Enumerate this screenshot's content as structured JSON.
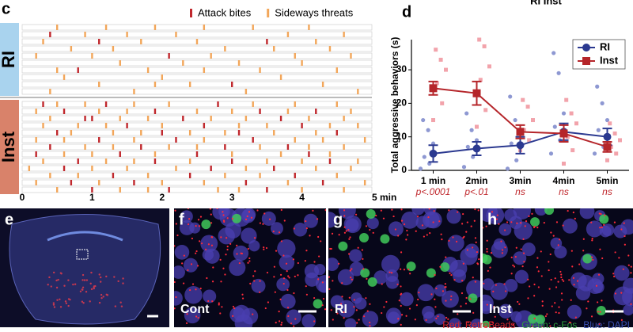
{
  "chart_data": [
    {
      "type": "raster",
      "panel": "c",
      "series": [
        {
          "name": "Attack bites",
          "color": "#c0282d"
        },
        {
          "name": "Sideways threats",
          "color": "#f2a65a"
        }
      ],
      "groups": [
        {
          "label": "RI",
          "color": "#a9d3ee",
          "rows": [
            [
              [],
              [
                0.5,
                1.2,
                1.9,
                2.6,
                3.3,
                4.1
              ]
            ],
            [
              [
                0.4
              ],
              [
                0.9,
                1.5,
                2.2,
                3.8,
                4.6
              ]
            ],
            [
              [
                1.1,
                3.5
              ],
              [
                0.3,
                1.7,
                2.5,
                4.2
              ]
            ],
            [
              [],
              [
                0.7,
                1.3,
                2.9,
                3.6,
                4.4
              ]
            ],
            [
              [
                2.1
              ],
              [
                0.2,
                1.0,
                2.7,
                3.9,
                4.7
              ]
            ],
            [
              [],
              [
                1.4,
                2.3,
                3.1,
                4.0
              ]
            ],
            [
              [
                0.8
              ],
              [
                0.5,
                1.8,
                2.6,
                3.4,
                4.5
              ]
            ],
            [
              [],
              [
                0.6,
                2.0,
                3.7
              ]
            ],
            [
              [
                3.0
              ],
              [
                1.1,
                1.9,
                2.4,
                4.3
              ]
            ],
            [
              [],
              [
                0.4,
                1.6,
                3.2,
                4.8
              ]
            ]
          ]
        },
        {
          "label": "Inst",
          "color": "#d9826a",
          "rows": [
            [
              [
                0.3,
                1.2,
                2.8
              ],
              [
                0.5,
                0.9,
                1.6,
                2.1,
                3.3,
                3.9,
                4.5
              ]
            ],
            [
              [
                0.6,
                1.9,
                3.4,
                4.2
              ],
              [
                0.2,
                1.1,
                1.5,
                2.5,
                3.0,
                3.8,
                4.7
              ]
            ],
            [
              [
                0.9,
                1.0,
                2.3,
                3.7
              ],
              [
                0.4,
                1.4,
                1.8,
                2.7,
                3.2,
                4.1,
                4.6
              ]
            ],
            [
              [
                1.5,
                2.6,
                4.0
              ],
              [
                0.3,
                0.8,
                1.2,
                2.0,
                3.1,
                3.5,
                4.4,
                4.8
              ]
            ],
            [
              [
                0.5,
                2.0,
                3.1,
                4.5
              ],
              [
                0.7,
                1.3,
                1.7,
                2.4,
                2.9,
                3.6,
                4.2
              ]
            ],
            [
              [
                1.1,
                2.2,
                3.3
              ],
              [
                0.2,
                0.6,
                1.6,
                2.6,
                3.9,
                4.3,
                4.9
              ]
            ],
            [
              [
                0.4,
                1.7,
                2.9,
                3.8
              ],
              [
                0.9,
                1.3,
                2.1,
                2.5,
                3.4,
                4.1,
                4.6
              ]
            ],
            [
              [
                0.2,
                1.4,
                2.5,
                4.1
              ],
              [
                0.6,
                1.0,
                1.9,
                3.0,
                3.7,
                4.4
              ]
            ],
            [
              [
                0.8,
                1.9,
                3.0,
                4.4
              ],
              [
                0.3,
                1.2,
                1.6,
                2.4,
                3.5,
                4.0,
                4.8
              ]
            ],
            [
              [
                0.6,
                2.7,
                3.6
              ],
              [
                0.1,
                1.0,
                1.5,
                2.2,
                3.2,
                4.2,
                4.7
              ]
            ],
            [
              [
                1.3,
                2.4,
                3.9
              ],
              [
                0.4,
                0.8,
                1.8,
                2.9,
                3.4,
                4.5
              ]
            ],
            [
              [
                0.7,
                1.6,
                3.2,
                4.3
              ],
              [
                0.2,
                1.1,
                2.0,
                2.6,
                3.8,
                4.9
              ]
            ],
            [
              [
                1.0,
                2.1,
                3.5
              ],
              [
                0.5,
                1.4,
                1.8,
                2.8,
                3.1,
                4.0,
                4.6
              ]
            ]
          ]
        }
      ],
      "xlim": [
        0,
        5
      ],
      "xticks": [
        0,
        1,
        2,
        3,
        4,
        {
          "value": 5,
          "label": "5 min"
        }
      ]
    },
    {
      "type": "line",
      "panel": "d",
      "title": "RI Inst",
      "ylabel": "Total aggressive behaviors (s)",
      "categories": [
        "1 min",
        "2min",
        "3min",
        "4min",
        "5min"
      ],
      "sublabels": [
        "p<.0001",
        "p<.01",
        "ns",
        "ns",
        "ns"
      ],
      "ylim": [
        0,
        39
      ],
      "yticks": [
        0,
        10,
        20,
        30
      ],
      "series": [
        {
          "name": "RI",
          "color": "#2b3990",
          "point_color": "#8e98d2",
          "values": [
            5,
            6.5,
            7.5,
            11.5,
            10
          ],
          "errors": [
            2.5,
            2,
            2.5,
            2.5,
            2.5
          ],
          "points": [
            [
              0.5,
              2,
              4,
              8,
              12,
              15
            ],
            [
              1,
              4,
              7,
              9,
              12,
              17
            ],
            [
              0.5,
              3,
              8,
              12,
              15,
              22
            ],
            [
              5,
              9,
              13,
              17,
              29,
              35
            ],
            [
              5,
              7,
              12,
              15,
              20,
              25
            ]
          ]
        },
        {
          "name": "Inst",
          "color": "#b5252a",
          "point_color": "#f2a3ab",
          "values": [
            24.5,
            23,
            11.5,
            11,
            7
          ],
          "errors": [
            2,
            3.5,
            2,
            2.5,
            1.5
          ],
          "points": [
            [
              15,
              20,
              26,
              30,
              33,
              36
            ],
            [
              13,
              18,
              27,
              31,
              37,
              39
            ],
            [
              6,
              9,
              12,
              15,
              19,
              21
            ],
            [
              2,
              6,
              10,
              14,
              17,
              21
            ],
            [
              3,
              5,
              7,
              9,
              11,
              14
            ]
          ]
        }
      ],
      "legend": "upper right"
    }
  ],
  "images": [
    {
      "letter": "e",
      "label": ""
    },
    {
      "letter": "f",
      "label": "Cont"
    },
    {
      "letter": "g",
      "label": "RI"
    },
    {
      "letter": "h",
      "label": "Inst"
    }
  ],
  "stain_legend": [
    {
      "text": "Red: RetroBeads",
      "color": "#d7262b"
    },
    {
      "text": "Green: c-Fos",
      "color": "#2e9c3a"
    },
    {
      "text": "Blue: DAPI",
      "color": "#3a4fb0"
    }
  ]
}
